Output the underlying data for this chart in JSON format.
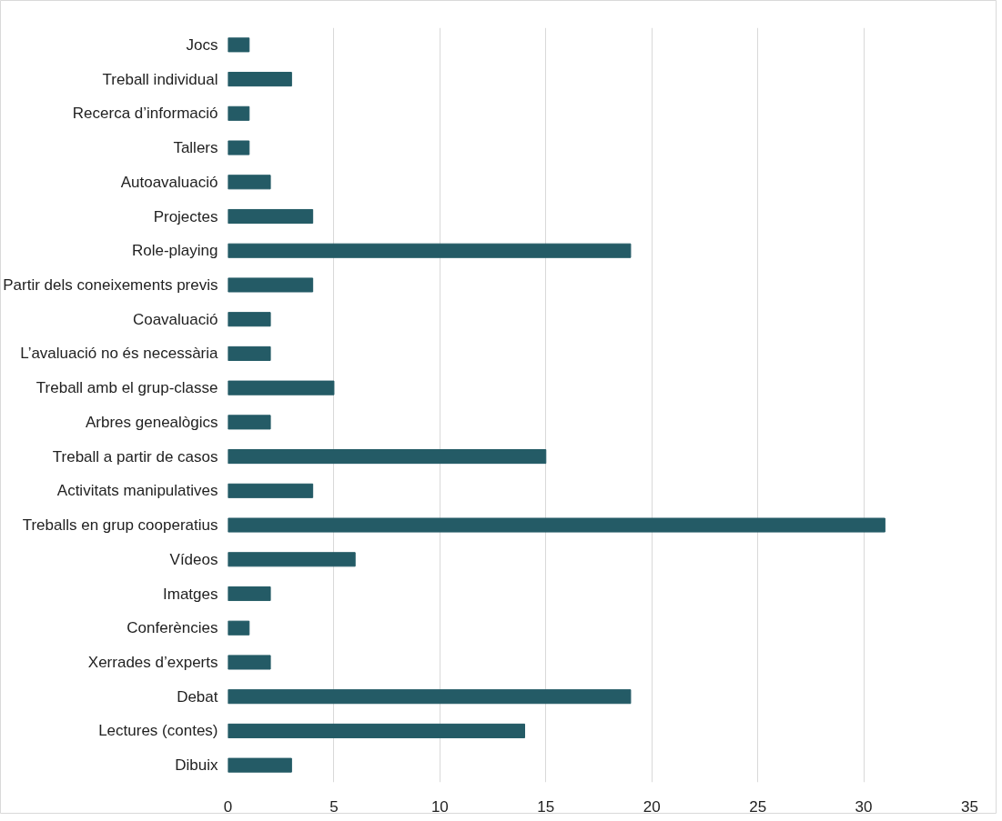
{
  "chart_data": {
    "type": "bar",
    "orientation": "horizontal",
    "categories": [
      "Jocs",
      "Treball individual",
      "Recerca d’informació",
      "Tallers",
      "Autoavaluació",
      "Projectes",
      "Role-playing",
      "Partir dels coneixements previs",
      "Coavaluació",
      "L’avaluació no és necessària",
      "Treball amb el grup-classe",
      "Arbres genealògics",
      "Treball a partir de casos",
      "Activitats manipulatives",
      "Treballs en grup cooperatius",
      "Vídeos",
      "Imatges",
      "Conferències",
      "Xerrades d’experts",
      "Debat",
      "Lectures (contes)",
      "Dibuix"
    ],
    "values": [
      1,
      3,
      1,
      1,
      2,
      4,
      19,
      4,
      2,
      2,
      5,
      2,
      15,
      4,
      31,
      6,
      2,
      1,
      2,
      19,
      14,
      3
    ],
    "color": "#245b66",
    "xlim": [
      0,
      35
    ],
    "xticks": [
      0,
      5,
      10,
      15,
      20,
      25,
      30,
      35
    ],
    "grid": "x"
  }
}
